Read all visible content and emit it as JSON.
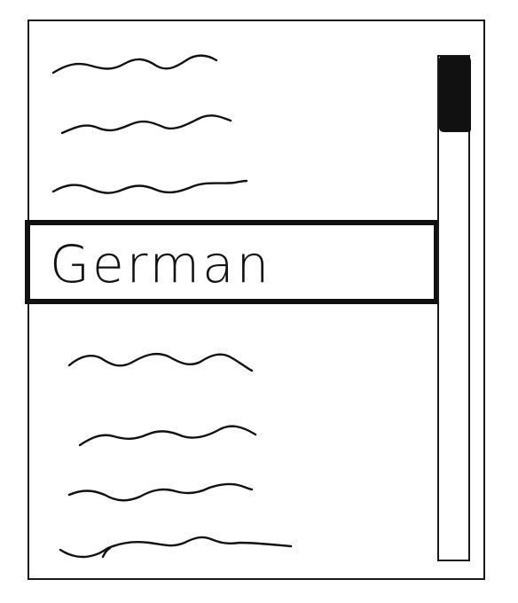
{
  "listbox": {
    "selected_item": {
      "label": "German"
    },
    "items_above_count_placeholder_glyphs": [
      "squiggle",
      "squiggle",
      "squiggle"
    ],
    "items_below_count_placeholder_glyphs": [
      "squiggle",
      "squiggle",
      "squiggle",
      "squiggle"
    ]
  },
  "scrollbar": {
    "thumb_position_fraction": 0.0,
    "thumb_size_fraction": 0.15
  },
  "colors": {
    "ink": "#111111",
    "background": "#ffffff"
  }
}
